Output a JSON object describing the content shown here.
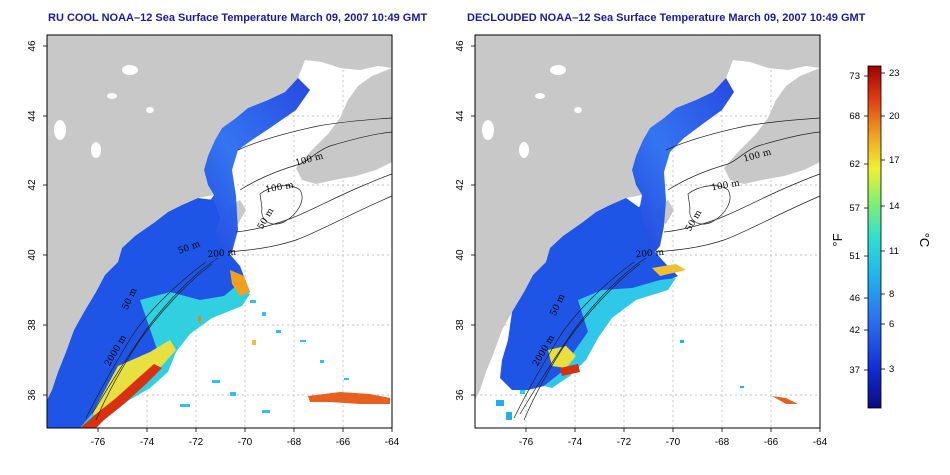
{
  "maps": [
    {
      "id": "left",
      "title": "RU COOL NOAA–12 Sea Surface Temperature March 09, 2007 10:49 GMT",
      "x_ticks": [
        "-76",
        "-74",
        "-72",
        "-70",
        "-68",
        "-66",
        "-64"
      ],
      "y_ticks": [
        "36",
        "38",
        "40",
        "42",
        "44",
        "46"
      ],
      "contour_labels": [
        "100 m",
        "100 m",
        "50 m",
        "50 m",
        "200 m",
        "50 m",
        "2000 m"
      ]
    },
    {
      "id": "right",
      "title": "DECLOUDED NOAA–12 Sea Surface Temperature March 09, 2007 10:49 GMT",
      "x_ticks": [
        "-76",
        "-74",
        "-72",
        "-70",
        "-68",
        "-66",
        "-64"
      ],
      "y_ticks": [
        "36",
        "38",
        "40",
        "42",
        "44",
        "46"
      ],
      "contour_labels": [
        "100 m",
        "100 m",
        "50 m",
        "200 m",
        "50 m",
        "2000 m"
      ]
    }
  ],
  "colorbar": {
    "fahrenheit_ticks": [
      "73",
      "68",
      "62",
      "57",
      "51",
      "46",
      "42",
      "37"
    ],
    "celsius_ticks": [
      "23",
      "20",
      "17",
      "14",
      "11",
      "8",
      "6",
      "3"
    ],
    "fahrenheit_unit": "°F",
    "celsius_unit": "°C",
    "colors": [
      "#0a0a80",
      "#1030d8",
      "#2a6ef0",
      "#20b0f0",
      "#30e0d0",
      "#80f070",
      "#f0f030",
      "#f0a020",
      "#e04010",
      "#a00000"
    ]
  },
  "colors": {
    "land": "#c8c8c8",
    "frame": "#000000",
    "title": "#1a1aa0",
    "grid": "#b0b0b0"
  }
}
